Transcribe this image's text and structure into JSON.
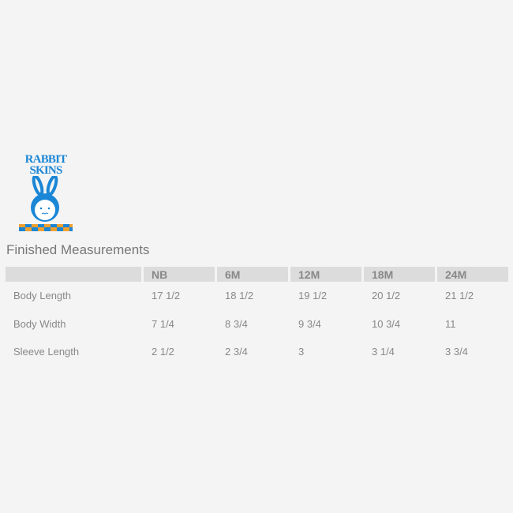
{
  "logo": {
    "line1": "RABBIT",
    "line2": "SKINS",
    "colors": {
      "blue": "#1a86d6",
      "orange": "#f0a030"
    }
  },
  "title": "Finished Measurements",
  "table": {
    "headers": [
      "",
      "NB",
      "6M",
      "12M",
      "18M",
      "24M"
    ],
    "rows": [
      {
        "label": "Body Length",
        "values": [
          "17 1/2",
          "18 1/2",
          "19 1/2",
          "20 1/2",
          "21 1/2"
        ]
      },
      {
        "label": "Body Width",
        "values": [
          "7 1/4",
          "8 3/4",
          "9 3/4",
          "10 3/4",
          "11"
        ]
      },
      {
        "label": "Sleeve Length",
        "values": [
          "2 1/2",
          "2 3/4",
          "3",
          "3 1/4",
          "3 3/4"
        ]
      }
    ]
  }
}
